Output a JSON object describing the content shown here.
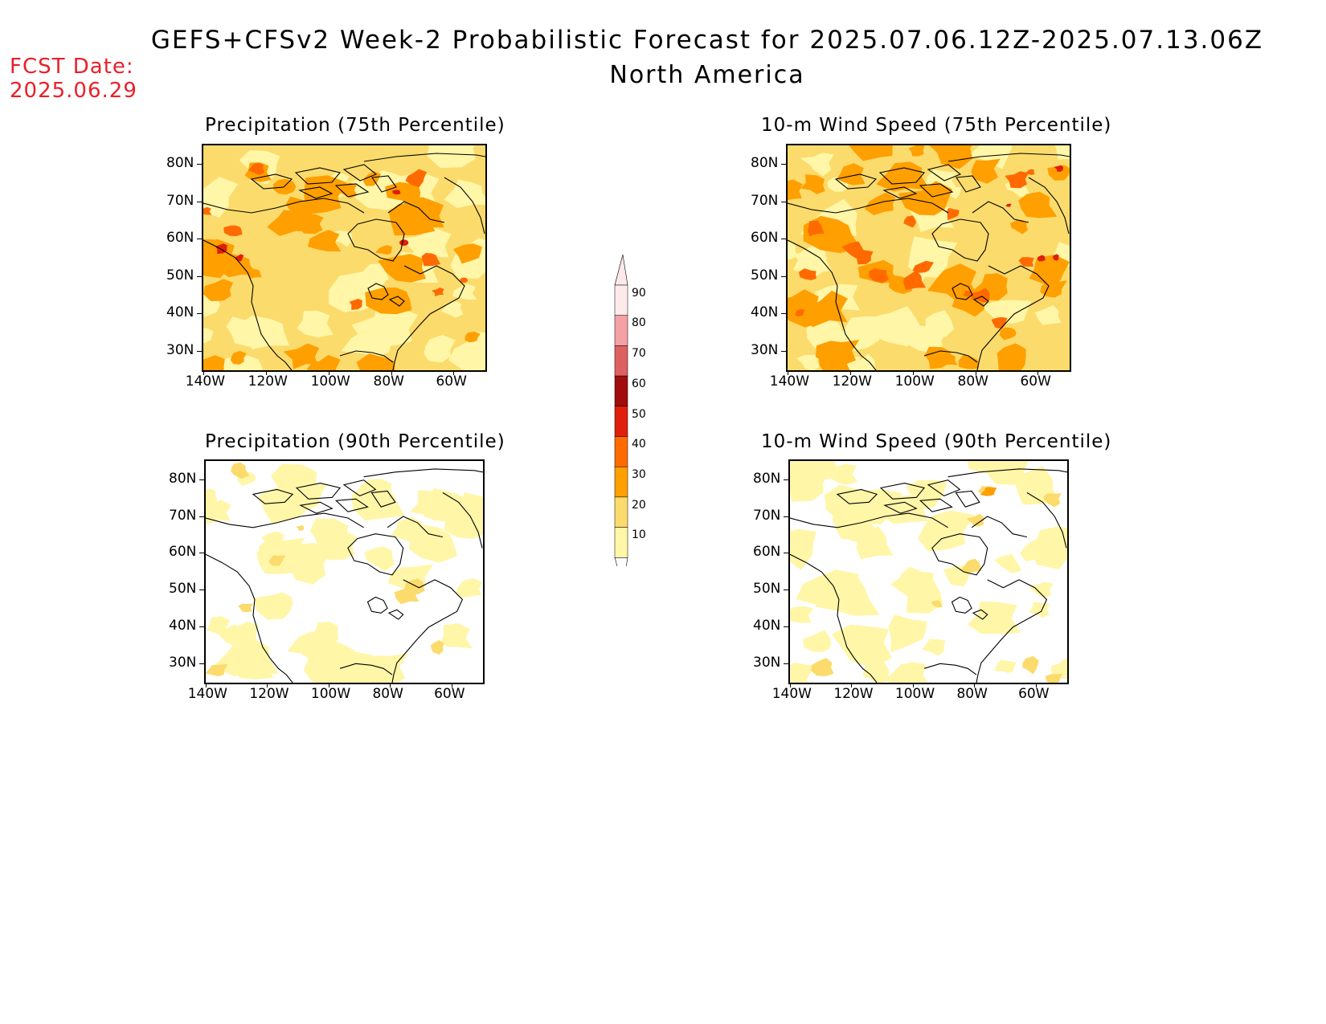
{
  "header": {
    "title": "GEFS+CFSv2 Week-2 Probabilistic Forecast for 2025.07.06.12Z-2025.07.13.06Z",
    "region": "North America",
    "fcst_label": "FCST Date:",
    "fcst_date": "2025.06.29"
  },
  "axes": {
    "lat_labels": [
      "80N",
      "70N",
      "60N",
      "50N",
      "40N",
      "30N"
    ],
    "lon_labels": [
      "140W",
      "120W",
      "100W",
      "80W",
      "60W"
    ]
  },
  "panels": [
    {
      "id": "precip-75",
      "title": "Precipitation (75th Percentile)",
      "intensity": "high",
      "variable": "precipitation"
    },
    {
      "id": "wind-75",
      "title": "10-m Wind Speed (75th Percentile)",
      "intensity": "high",
      "variable": "wind"
    },
    {
      "id": "precip-90",
      "title": "Precipitation (90th Percentile)",
      "intensity": "low",
      "variable": "precipitation"
    },
    {
      "id": "wind-90",
      "title": "10-m Wind Speed (90th Percentile)",
      "intensity": "low",
      "variable": "wind"
    }
  ],
  "colorbar": {
    "labels": [
      "90",
      "80",
      "70",
      "60",
      "50",
      "40",
      "30",
      "20",
      "10"
    ],
    "colors": [
      "#fde9ea",
      "#f3a1a4",
      "#de6161",
      "#a10c0c",
      "#e01e0a",
      "#ff6a00",
      "#ff9f00",
      "#fbdb6c",
      "#fff6a8"
    ]
  }
}
